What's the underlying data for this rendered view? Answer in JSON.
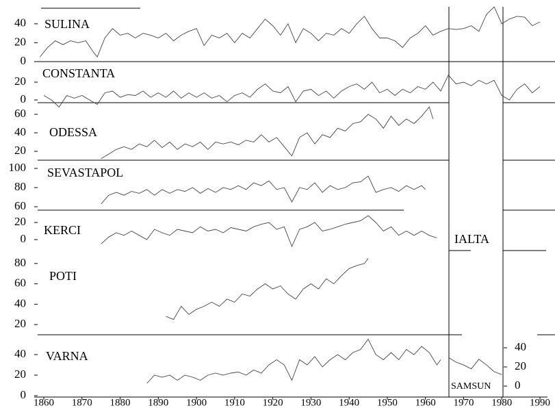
{
  "chart_data": [
    {
      "type": "line",
      "title": "SULINA",
      "xlim": [
        1860,
        1990
      ],
      "ylim": [
        0,
        50
      ],
      "yticks": [
        0,
        20,
        40
      ],
      "color": "#444444",
      "x": [
        1859,
        1861,
        1863,
        1865,
        1867,
        1869,
        1871,
        1873,
        1874,
        1876,
        1878,
        1880,
        1882,
        1884,
        1886,
        1888,
        1890,
        1892,
        1894,
        1896,
        1898,
        1900,
        1902,
        1904,
        1906,
        1908,
        1910,
        1912,
        1914,
        1916,
        1918,
        1920,
        1922,
        1924,
        1926,
        1928,
        1930,
        1932,
        1934,
        1936,
        1938,
        1940,
        1942,
        1944,
        1946,
        1948,
        1950,
        1952,
        1954,
        1956,
        1958,
        1960,
        1962,
        1964,
        1966,
        1968,
        1970,
        1972,
        1974,
        1976,
        1978,
        1980,
        1982,
        1984,
        1986,
        1988,
        1990
      ],
      "values": [
        5,
        15,
        22,
        18,
        22,
        20,
        22,
        10,
        5,
        25,
        35,
        28,
        30,
        25,
        30,
        28,
        25,
        30,
        22,
        28,
        32,
        35,
        17,
        28,
        25,
        30,
        20,
        30,
        25,
        35,
        45,
        38,
        28,
        40,
        20,
        35,
        30,
        22,
        30,
        28,
        35,
        30,
        40,
        48,
        35,
        25,
        25,
        22,
        15,
        25,
        30,
        38,
        28,
        32,
        35,
        34,
        35,
        38,
        32,
        50,
        58,
        40,
        45,
        48,
        47,
        38,
        42
      ]
    },
    {
      "type": "line",
      "title": "CONSTANTA",
      "xlim": [
        1860,
        1990
      ],
      "ylim": [
        -5,
        40
      ],
      "yticks": [
        0,
        20
      ],
      "color": "#444444",
      "x": [
        1860,
        1862,
        1864,
        1866,
        1868,
        1870,
        1872,
        1874,
        1876,
        1878,
        1880,
        1882,
        1884,
        1886,
        1888,
        1890,
        1892,
        1894,
        1896,
        1898,
        1900,
        1902,
        1904,
        1906,
        1908,
        1910,
        1912,
        1914,
        1916,
        1918,
        1920,
        1922,
        1924,
        1926,
        1928,
        1930,
        1932,
        1934,
        1936,
        1938,
        1940,
        1942,
        1944,
        1946,
        1948,
        1950,
        1952,
        1954,
        1956,
        1958,
        1960,
        1962,
        1964,
        1966,
        1968,
        1970,
        1972,
        1974,
        1976,
        1978,
        1980,
        1982,
        1984,
        1986,
        1988,
        1990
      ],
      "values": [
        5,
        0,
        -8,
        5,
        2,
        5,
        0,
        -5,
        8,
        10,
        3,
        6,
        5,
        10,
        3,
        8,
        3,
        10,
        2,
        8,
        3,
        8,
        2,
        5,
        -2,
        5,
        8,
        3,
        12,
        18,
        10,
        8,
        15,
        -2,
        10,
        12,
        5,
        10,
        2,
        10,
        15,
        18,
        12,
        20,
        8,
        12,
        5,
        12,
        8,
        15,
        12,
        20,
        10,
        28,
        18,
        20,
        16,
        22,
        18,
        22,
        5,
        0,
        12,
        18,
        8,
        15
      ]
    },
    {
      "type": "line",
      "title": "ODESSA",
      "xlim": [
        1860,
        1990
      ],
      "ylim": [
        10,
        70
      ],
      "yticks": [
        20,
        40,
        60
      ],
      "color": "#444444",
      "x": [
        1875,
        1877,
        1879,
        1881,
        1883,
        1885,
        1887,
        1889,
        1891,
        1893,
        1895,
        1897,
        1899,
        1901,
        1903,
        1905,
        1907,
        1909,
        1911,
        1913,
        1915,
        1917,
        1919,
        1921,
        1923,
        1925,
        1927,
        1929,
        1931,
        1933,
        1935,
        1937,
        1939,
        1941,
        1943,
        1945,
        1947,
        1949,
        1951,
        1953,
        1955,
        1957,
        1959,
        1961,
        1962
      ],
      "values": [
        12,
        17,
        22,
        25,
        22,
        28,
        25,
        32,
        24,
        30,
        22,
        28,
        25,
        30,
        22,
        30,
        28,
        30,
        27,
        32,
        30,
        38,
        30,
        35,
        25,
        15,
        35,
        40,
        28,
        38,
        35,
        45,
        42,
        50,
        52,
        60,
        55,
        45,
        58,
        48,
        55,
        50,
        58,
        68,
        55
      ]
    },
    {
      "type": "line",
      "title": "SEVASTAPOL",
      "xlim": [
        1860,
        1990
      ],
      "ylim": [
        55,
        110
      ],
      "yticks": [
        60,
        80,
        100
      ],
      "color": "#444444",
      "x": [
        1875,
        1877,
        1879,
        1881,
        1883,
        1885,
        1887,
        1889,
        1891,
        1893,
        1895,
        1897,
        1899,
        1901,
        1903,
        1905,
        1907,
        1909,
        1911,
        1913,
        1915,
        1917,
        1919,
        1921,
        1923,
        1925,
        1927,
        1929,
        1931,
        1933,
        1935,
        1937,
        1939,
        1941,
        1943,
        1945,
        1947,
        1949,
        1951,
        1953,
        1955,
        1957,
        1959,
        1960
      ],
      "values": [
        63,
        72,
        75,
        72,
        76,
        74,
        78,
        72,
        78,
        74,
        78,
        76,
        80,
        74,
        79,
        75,
        80,
        78,
        82,
        78,
        85,
        82,
        87,
        78,
        80,
        65,
        80,
        78,
        85,
        75,
        82,
        78,
        80,
        85,
        86,
        92,
        75,
        78,
        80,
        76,
        82,
        78,
        82,
        78
      ]
    },
    {
      "type": "line",
      "title": "KERCI",
      "xlim": [
        1860,
        1990
      ],
      "ylim": [
        -10,
        30
      ],
      "yticks": [
        0,
        20
      ],
      "color": "#444444",
      "x": [
        1875,
        1877,
        1879,
        1881,
        1883,
        1885,
        1887,
        1889,
        1891,
        1893,
        1895,
        1897,
        1899,
        1901,
        1903,
        1905,
        1907,
        1909,
        1911,
        1913,
        1915,
        1917,
        1919,
        1921,
        1923,
        1925,
        1927,
        1929,
        1931,
        1933,
        1935,
        1937,
        1939,
        1941,
        1943,
        1945,
        1947,
        1949,
        1951,
        1953,
        1955,
        1957,
        1959,
        1961,
        1963
      ],
      "values": [
        -5,
        3,
        8,
        5,
        10,
        5,
        0,
        12,
        8,
        5,
        12,
        10,
        8,
        15,
        10,
        12,
        8,
        14,
        12,
        10,
        15,
        18,
        20,
        12,
        15,
        -8,
        12,
        15,
        20,
        10,
        12,
        15,
        18,
        20,
        22,
        28,
        20,
        10,
        15,
        5,
        10,
        5,
        10,
        5,
        2
      ]
    },
    {
      "type": "line",
      "title": "POTI",
      "xlim": [
        1860,
        1990
      ],
      "ylim": [
        10,
        90
      ],
      "yticks": [
        20,
        40,
        60,
        80
      ],
      "color": "#444444",
      "x": [
        1892,
        1894,
        1896,
        1898,
        1900,
        1902,
        1904,
        1906,
        1908,
        1910,
        1912,
        1914,
        1916,
        1918,
        1920,
        1922,
        1924,
        1926,
        1928,
        1930,
        1932,
        1934,
        1936,
        1938,
        1940,
        1942,
        1944,
        1945
      ],
      "values": [
        28,
        25,
        38,
        30,
        35,
        38,
        42,
        38,
        45,
        42,
        50,
        48,
        55,
        60,
        55,
        58,
        50,
        45,
        55,
        60,
        55,
        65,
        60,
        68,
        75,
        78,
        80,
        85
      ]
    },
    {
      "type": "line",
      "title": "VARNA",
      "xlim": [
        1860,
        1990
      ],
      "ylim": [
        0,
        50
      ],
      "yticks": [
        0,
        20,
        40
      ],
      "color": "#444444",
      "xticks": [
        1860,
        1870,
        1880,
        1890,
        1900,
        1910,
        1920,
        1930,
        1940,
        1950,
        1960,
        1970,
        1980,
        1990
      ],
      "x": [
        1887,
        1889,
        1891,
        1893,
        1895,
        1897,
        1899,
        1901,
        1903,
        1905,
        1907,
        1909,
        1911,
        1913,
        1915,
        1917,
        1919,
        1921,
        1923,
        1925,
        1927,
        1929,
        1931,
        1933,
        1935,
        1937,
        1939,
        1941,
        1943,
        1945,
        1947,
        1949,
        1951,
        1953,
        1955,
        1957,
        1959,
        1961,
        1963,
        1964
      ],
      "values": [
        12,
        20,
        18,
        20,
        15,
        20,
        18,
        15,
        20,
        22,
        20,
        22,
        23,
        20,
        25,
        22,
        30,
        35,
        30,
        15,
        35,
        30,
        38,
        28,
        35,
        40,
        35,
        42,
        45,
        55,
        40,
        35,
        42,
        35,
        45,
        40,
        48,
        42,
        30,
        35
      ]
    },
    {
      "type": "line",
      "title": "SAMSUN",
      "xlim": [
        1860,
        1990
      ],
      "ylim": [
        0,
        40
      ],
      "yticks": [
        0,
        20,
        40
      ],
      "color": "#444444",
      "x": [
        1966,
        1968,
        1970,
        1972,
        1974,
        1976,
        1978,
        1980
      ],
      "values": [
        30,
        25,
        22,
        18,
        28,
        22,
        15,
        12
      ]
    },
    {
      "type": "line",
      "title": "IALTA"
    }
  ]
}
